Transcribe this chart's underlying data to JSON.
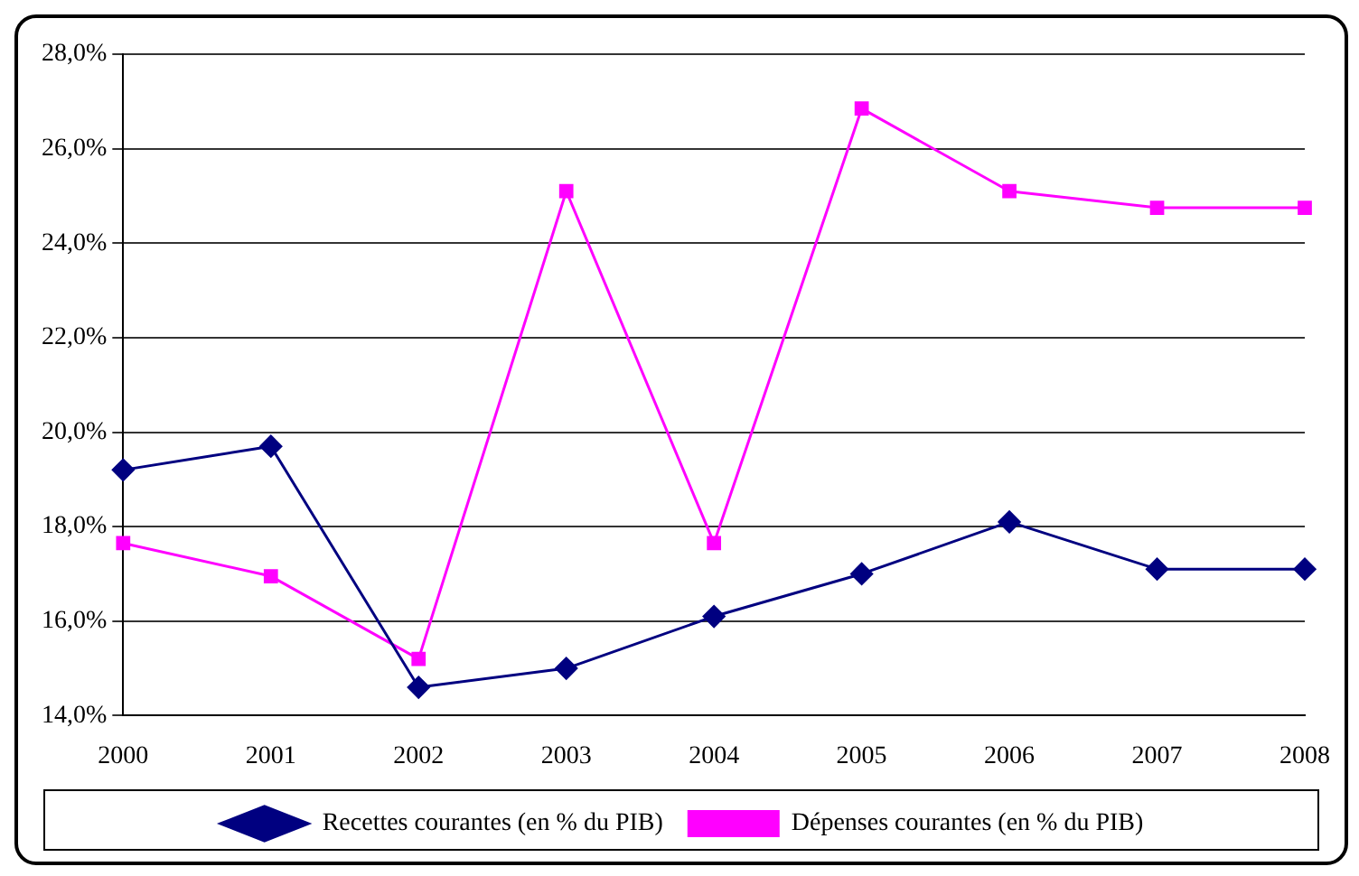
{
  "chart_data": {
    "type": "line",
    "categories": [
      "2000",
      "2001",
      "2002",
      "2003",
      "2004",
      "2005",
      "2006",
      "2007",
      "2008"
    ],
    "series": [
      {
        "name": "Recettes courantes (en % du PIB)",
        "color": "#000080",
        "marker": "diamond",
        "values": [
          19.2,
          19.7,
          14.6,
          15.0,
          16.1,
          17.0,
          18.1,
          17.1,
          17.1
        ]
      },
      {
        "name": "Dépenses courantes (en % du PIB)",
        "color": "#ff00ff",
        "marker": "square",
        "values": [
          17.65,
          16.95,
          15.2,
          25.1,
          17.65,
          26.85,
          25.1,
          24.75,
          24.75
        ]
      }
    ],
    "ylim": [
      14,
      28
    ],
    "yticks": [
      {
        "value": 14,
        "label": "14,0%"
      },
      {
        "value": 16,
        "label": "16,0%"
      },
      {
        "value": 18,
        "label": "18,0%"
      },
      {
        "value": 20,
        "label": "20,0%"
      },
      {
        "value": 22,
        "label": "22,0%"
      },
      {
        "value": 24,
        "label": "24,0%"
      },
      {
        "value": 26,
        "label": "26,0%"
      },
      {
        "value": 28,
        "label": "28,0%"
      }
    ],
    "grid": "y",
    "legend": "bottom",
    "line_style": "solid"
  }
}
